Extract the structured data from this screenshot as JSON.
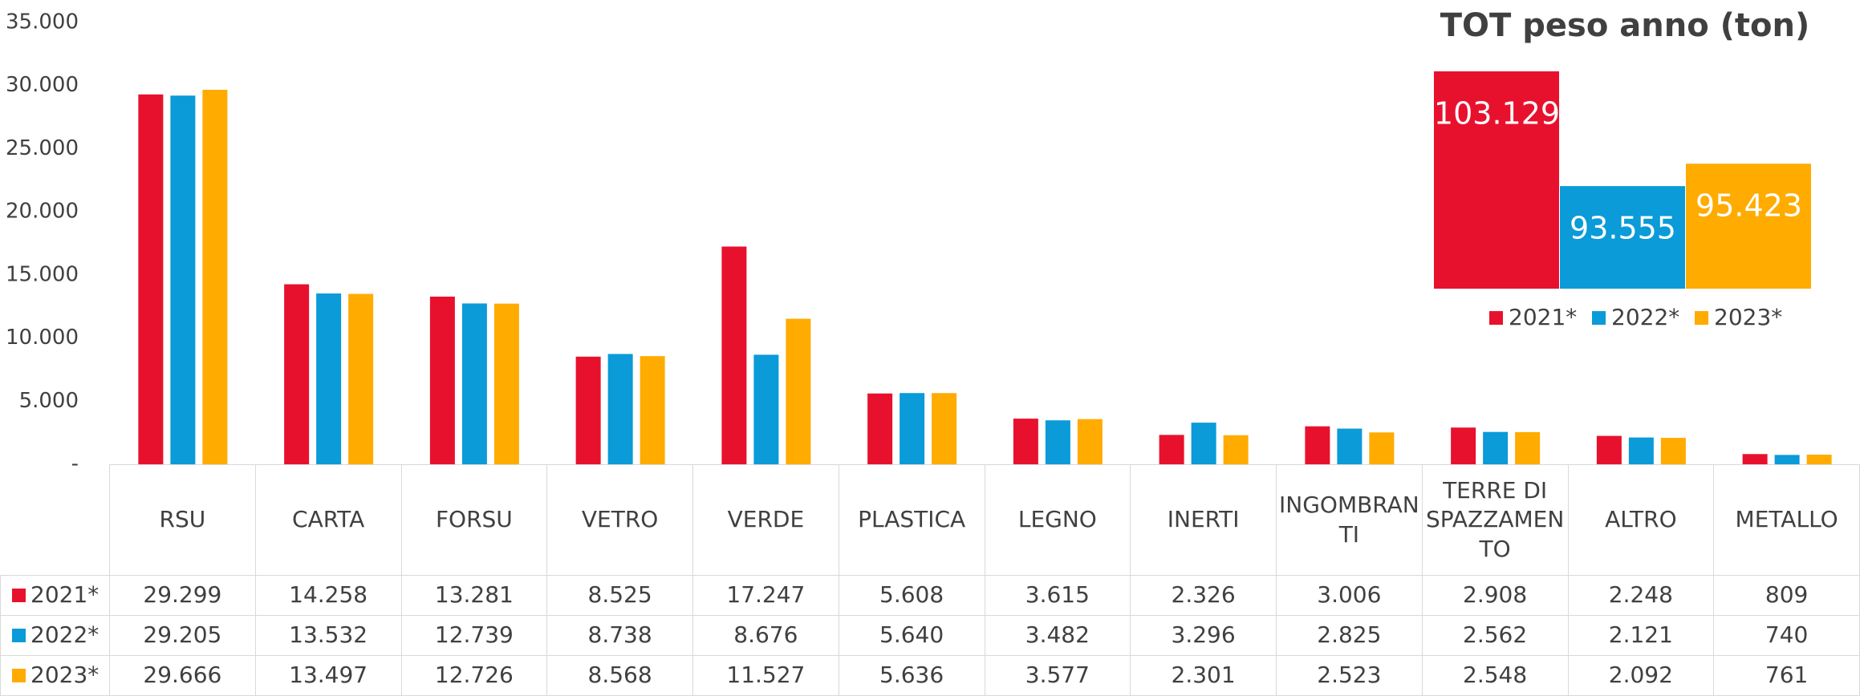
{
  "chart_data": [
    {
      "type": "bar",
      "categories": [
        "RSU",
        "CARTA",
        "FORSU",
        "VETRO",
        "VERDE",
        "PLASTICA",
        "LEGNO",
        "INERTI",
        "INGOMBRANTI",
        "TERRE DI SPAZZAMENTO",
        "ALTRO",
        "METALLO"
      ],
      "series": [
        {
          "name": "2021*",
          "color": "#e8112d",
          "values": [
            29299,
            14258,
            13281,
            8525,
            17247,
            5608,
            3615,
            2326,
            3006,
            2908,
            2248,
            809
          ],
          "value_labels": [
            "29.299",
            "14.258",
            "13.281",
            "8.525",
            "17.247",
            "5.608",
            "3.615",
            "2.326",
            "3.006",
            "2.908",
            "2.248",
            "809"
          ]
        },
        {
          "name": "2022*",
          "color": "#0a9bd8",
          "values": [
            29205,
            13532,
            12739,
            8738,
            8676,
            5640,
            3482,
            3296,
            2825,
            2562,
            2121,
            740
          ],
          "value_labels": [
            "29.205",
            "13.532",
            "12.739",
            "8.738",
            "8.676",
            "5.640",
            "3.482",
            "3.296",
            "2.825",
            "2.562",
            "2.121",
            "740"
          ]
        },
        {
          "name": "2023*",
          "color": "#ffab00",
          "values": [
            29666,
            13497,
            12726,
            8568,
            11527,
            5636,
            3577,
            2301,
            2523,
            2548,
            2092,
            761
          ],
          "value_labels": [
            "29.666",
            "13.497",
            "12.726",
            "8.568",
            "11.527",
            "5.636",
            "3.577",
            "2.301",
            "2.523",
            "2.548",
            "2.092",
            "761"
          ]
        }
      ],
      "ylim": [
        0,
        35000
      ],
      "yticks": [
        {
          "value": 0,
          "label": "-"
        },
        {
          "value": 5000,
          "label": "5.000"
        },
        {
          "value": 10000,
          "label": "10.000"
        },
        {
          "value": 15000,
          "label": "15.000"
        },
        {
          "value": 20000,
          "label": "20.000"
        },
        {
          "value": 25000,
          "label": "25.000"
        },
        {
          "value": 30000,
          "label": "30.000"
        },
        {
          "value": 35000,
          "label": "35.000"
        }
      ],
      "grid": false
    },
    {
      "type": "bar",
      "title": "TOT peso anno (ton)",
      "series": [
        {
          "name": "2021*",
          "color": "#e8112d",
          "values": [
            103129
          ],
          "value_labels": [
            "103.129"
          ]
        },
        {
          "name": "2022*",
          "color": "#0a9bd8",
          "values": [
            93555
          ],
          "value_labels": [
            "93.555"
          ]
        },
        {
          "name": "2023*",
          "color": "#ffab00",
          "values": [
            95423
          ],
          "value_labels": [
            "95.423"
          ]
        }
      ],
      "ylim": [
        85000,
        105000
      ],
      "legend": "bottom"
    }
  ]
}
